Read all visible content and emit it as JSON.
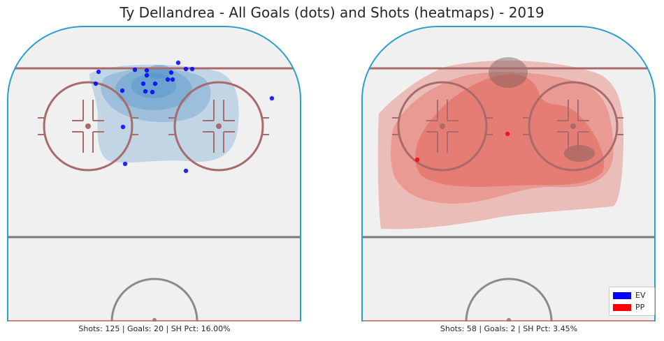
{
  "title": "Ty Dellandrea - All Goals (dots) and Shots (heatmaps) - 2019",
  "legend": [
    {
      "label": "EV",
      "color": "#0000ff"
    },
    {
      "label": "PP",
      "color": "#ff0000"
    }
  ],
  "chart_data": [
    {
      "type": "heatmap",
      "name": "EV",
      "caption": "Shots: 125 | Goals: 20 | SH Pct: 16.00%",
      "stats": {
        "shots": 125,
        "goals": 20,
        "sh_pct": 16.0
      },
      "heatmap_color": "#4a90c8",
      "goal_color": "#0000ff",
      "goals": [
        [
          210,
          101
        ],
        [
          245,
          104
        ],
        [
          255,
          90
        ],
        [
          193,
          100
        ],
        [
          175,
          130
        ],
        [
          205,
          120
        ],
        [
          210,
          108
        ],
        [
          208,
          131
        ],
        [
          218,
          132
        ],
        [
          222,
          120
        ],
        [
          240,
          114
        ],
        [
          247,
          114
        ],
        [
          266,
          99
        ],
        [
          275,
          99
        ],
        [
          141,
          103
        ],
        [
          137,
          120
        ],
        [
          176,
          182
        ],
        [
          179,
          235
        ],
        [
          266,
          245
        ],
        [
          389,
          141
        ]
      ]
    },
    {
      "type": "heatmap",
      "name": "PP",
      "caption": "Shots: 58 | Goals: 2 | SH Pct: 3.45%",
      "stats": {
        "shots": 58,
        "goals": 2,
        "sh_pct": 3.45
      },
      "heatmap_color": "#e0493b",
      "goal_color": "#ff0000",
      "goals": [
        [
          726,
          192
        ],
        [
          597,
          229
        ]
      ]
    }
  ]
}
